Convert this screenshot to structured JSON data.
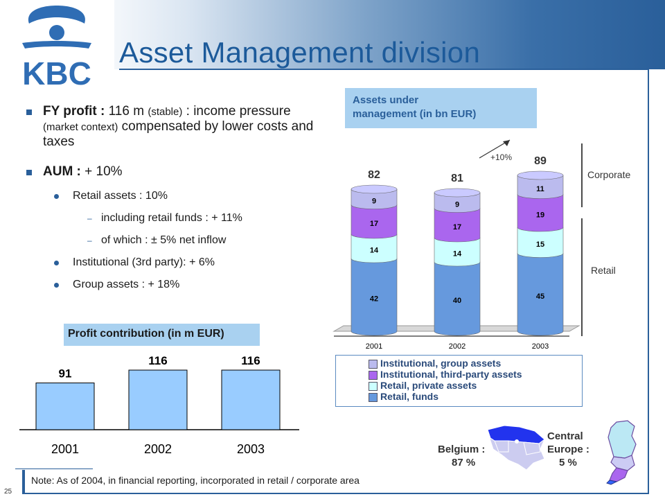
{
  "header": {
    "title": "Asset Management division",
    "logo_text": "KBC",
    "page_number": "25"
  },
  "bullets": {
    "profit": {
      "bold_prefix": "FY profit :",
      "t1": " 116 m ",
      "s1": "(stable)",
      "t2": " : income pressure ",
      "s2": "(market context)",
      "t3": " compensated by lower costs and taxes"
    },
    "aum": {
      "bold_prefix": "AUM :",
      "text": " + 10%"
    },
    "sub": [
      {
        "text": "Retail assets : 10%",
        "level": 2
      },
      {
        "text": "including retail funds : + 11%",
        "level": 3
      },
      {
        "text": "of which : ± 5% net inflow",
        "level": 3
      },
      {
        "text": "Institutional (3rd party): + 6%",
        "level": 2
      },
      {
        "text": "Group assets : + 18%",
        "level": 2
      }
    ]
  },
  "note": "Note: As of 2004, in financial reporting, incorporated in retail / corporate area",
  "maps": {
    "belgium_line1": "Belgium :",
    "belgium_line2": "87 %",
    "ce_line1": "Central",
    "ce_line2": "Europe :",
    "ce_line3": "5 %"
  },
  "chart_data": [
    {
      "type": "bar",
      "title": "Profit contribution (in m EUR)",
      "categories": [
        "2001",
        "2002",
        "2003"
      ],
      "values": [
        91,
        116,
        116
      ],
      "data_labels": [
        "91",
        "116",
        "116"
      ],
      "color": "#99ccff",
      "grid": false
    },
    {
      "type": "bar",
      "stacked": true,
      "title_line1": "Assets under",
      "title_line2": "management (in bn EUR)",
      "categories": [
        "2001",
        "2002",
        "2003"
      ],
      "series": [
        {
          "name": "Retail, funds",
          "values": [
            42,
            40,
            45
          ],
          "color": "#6699dd"
        },
        {
          "name": "Retail, private assets",
          "values": [
            14,
            14,
            15
          ],
          "color": "#ccffff"
        },
        {
          "name": "Institutional, third-party assets",
          "values": [
            17,
            17,
            19
          ],
          "color": "#aa66ee"
        },
        {
          "name": "Institutional, group assets",
          "values": [
            9,
            9,
            11
          ],
          "color": "#bbbbee"
        }
      ],
      "totals": [
        "82",
        "81",
        "89"
      ],
      "growth_annotation": "+10%",
      "side_labels": {
        "corporate": "Corporate",
        "retail": "Retail"
      },
      "legend_order": [
        "Institutional, group assets",
        "Institutional, third-party assets",
        "Retail, private assets",
        "Retail, funds"
      ],
      "legend_placement": "bottom",
      "grid": false
    }
  ]
}
